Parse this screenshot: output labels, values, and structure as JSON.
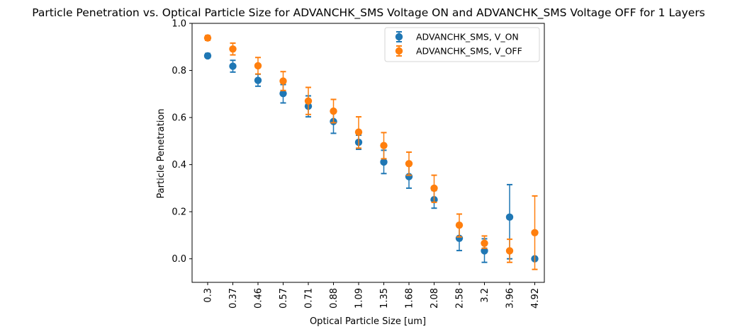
{
  "chart_data": {
    "type": "scatter",
    "title": "Particle Penetration vs. Optical Particle Size for ADVANCHK_SMS Voltage ON and ADVANCHK_SMS Voltage OFF for 1 Layers",
    "xlabel": "Optical Particle Size [um]",
    "ylabel": "Particle Penetration",
    "categories": [
      "0.3",
      "0.37",
      "0.46",
      "0.57",
      "0.71",
      "0.88",
      "1.09",
      "1.35",
      "1.68",
      "2.08",
      "2.58",
      "3.2",
      "3.96",
      "4.92"
    ],
    "ylim": [
      -0.1,
      1.0
    ],
    "yticks": [
      "0.0",
      "0.2",
      "0.4",
      "0.6",
      "0.8",
      "1.0"
    ],
    "grid": false,
    "legend_position": "top-right",
    "series": [
      {
        "name": "ADVANCHK_SMS, V_ON",
        "color": "#1f77b4",
        "values": [
          0.862,
          0.818,
          0.758,
          0.702,
          0.648,
          0.583,
          0.495,
          0.411,
          0.349,
          0.251,
          0.087,
          0.034,
          0.177,
          0.0
        ],
        "err_low": [
          0.855,
          0.793,
          0.733,
          0.662,
          0.603,
          0.533,
          0.465,
          0.362,
          0.3,
          0.215,
          0.035,
          -0.015,
          0.0,
          0.0
        ],
        "err_high": [
          0.872,
          0.843,
          0.784,
          0.74,
          0.692,
          0.633,
          0.525,
          0.461,
          0.4,
          0.29,
          0.14,
          0.085,
          0.315,
          0.0
        ]
      },
      {
        "name": "ADVANCHK_SMS, V_OFF",
        "color": "#ff7f0e",
        "values": [
          0.938,
          0.891,
          0.82,
          0.755,
          0.67,
          0.627,
          0.538,
          0.481,
          0.404,
          0.3,
          0.143,
          0.066,
          0.034,
          0.111
        ],
        "err_low": [
          0.928,
          0.866,
          0.785,
          0.715,
          0.613,
          0.578,
          0.47,
          0.425,
          0.355,
          0.24,
          0.093,
          0.045,
          -0.015,
          -0.045
        ],
        "err_high": [
          0.948,
          0.916,
          0.855,
          0.795,
          0.728,
          0.677,
          0.603,
          0.536,
          0.453,
          0.355,
          0.19,
          0.097,
          0.083,
          0.267
        ]
      }
    ]
  }
}
